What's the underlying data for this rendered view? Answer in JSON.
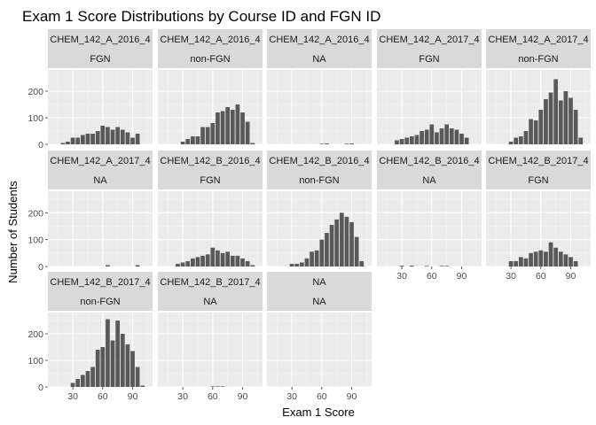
{
  "chart_data": {
    "type": "bar",
    "title": "Exam 1 Score Distributions by Course ID and FGN ID",
    "xlabel": "Exam 1 Score",
    "ylabel": "Number of Students",
    "x_ticks": [
      30,
      60,
      90
    ],
    "x_tick_labels": [
      "30",
      "60",
      "90"
    ],
    "y_ticks": [
      0,
      100,
      200
    ],
    "y_tick_labels": [
      "0",
      "100",
      "200"
    ],
    "xlim": [
      5,
      110
    ],
    "ylim": [
      0,
      280
    ],
    "bin_centers": [
      20,
      25,
      30,
      35,
      40,
      45,
      50,
      55,
      60,
      65,
      70,
      75,
      80,
      85,
      90,
      95,
      100
    ],
    "grid": true,
    "layout": "facet_wrap, 5 columns",
    "colors": {
      "bar": "#595959",
      "panel_background": "#ebebeb",
      "grid_major": "#ffffff",
      "strip_background": "#d9d9d9"
    },
    "panels": [
      {
        "strip1": "CHEM_142_A_2016_4",
        "strip2": "FGN",
        "values": [
          5,
          10,
          25,
          25,
          35,
          40,
          40,
          50,
          70,
          65,
          55,
          65,
          55,
          45,
          25,
          40,
          0
        ]
      },
      {
        "strip1": "CHEM_142_A_2016_4",
        "strip2": "non-FGN",
        "values": [
          0,
          0,
          10,
          20,
          30,
          30,
          65,
          65,
          80,
          120,
          125,
          140,
          130,
          150,
          120,
          85,
          5
        ]
      },
      {
        "strip1": "CHEM_142_A_2016_4",
        "strip2": "NA",
        "values": [
          0,
          0,
          0,
          0,
          0,
          0,
          0,
          0,
          2,
          3,
          0,
          0,
          0,
          2,
          3,
          0,
          0
        ]
      },
      {
        "strip1": "CHEM_142_A_2017_4",
        "strip2": "FGN",
        "values": [
          0,
          15,
          20,
          25,
          30,
          35,
          50,
          55,
          75,
          45,
          60,
          75,
          60,
          55,
          40,
          25,
          0
        ]
      },
      {
        "strip1": "CHEM_142_A_2017_4",
        "strip2": "non-FGN",
        "values": [
          0,
          0,
          10,
          25,
          30,
          50,
          95,
          90,
          130,
          170,
          195,
          245,
          165,
          200,
          175,
          130,
          25
        ]
      },
      {
        "strip1": "CHEM_142_A_2017_4",
        "strip2": "NA",
        "values": [
          0,
          0,
          0,
          0,
          0,
          0,
          0,
          0,
          0,
          5,
          0,
          0,
          0,
          0,
          0,
          5,
          0
        ]
      },
      {
        "strip1": "CHEM_142_B_2016_4",
        "strip2": "FGN",
        "values": [
          0,
          10,
          15,
          20,
          30,
          35,
          40,
          45,
          70,
          60,
          50,
          55,
          40,
          40,
          30,
          20,
          5
        ]
      },
      {
        "strip1": "CHEM_142_B_2016_4",
        "strip2": "non-FGN",
        "values": [
          0,
          0,
          10,
          10,
          15,
          30,
          55,
          60,
          100,
          125,
          155,
          175,
          200,
          185,
          165,
          110,
          20
        ]
      },
      {
        "strip1": "CHEM_142_B_2016_4",
        "strip2": "NA",
        "values": [
          0,
          0,
          3,
          0,
          3,
          0,
          0,
          2,
          0,
          0,
          2,
          2,
          0,
          0,
          0,
          0,
          0
        ]
      },
      {
        "strip1": "CHEM_142_B_2017_4",
        "strip2": "FGN",
        "values": [
          0,
          0,
          20,
          20,
          35,
          30,
          50,
          55,
          60,
          55,
          90,
          70,
          55,
          45,
          35,
          20,
          0
        ]
      },
      {
        "strip1": "CHEM_142_B_2017_4",
        "strip2": "non-FGN",
        "values": [
          0,
          0,
          15,
          30,
          45,
          60,
          75,
          140,
          150,
          255,
          175,
          250,
          200,
          160,
          135,
          75,
          5
        ]
      },
      {
        "strip1": "CHEM_142_B_2017_4",
        "strip2": "NA",
        "values": [
          0,
          0,
          0,
          0,
          0,
          0,
          0,
          0,
          2,
          2,
          2,
          0,
          0,
          0,
          0,
          0,
          0
        ]
      },
      {
        "strip1": "NA",
        "strip2": "NA",
        "values": [
          0,
          0,
          0,
          0,
          0,
          0,
          0,
          0,
          0,
          0,
          0,
          0,
          0,
          0,
          0,
          0,
          0
        ]
      }
    ]
  }
}
